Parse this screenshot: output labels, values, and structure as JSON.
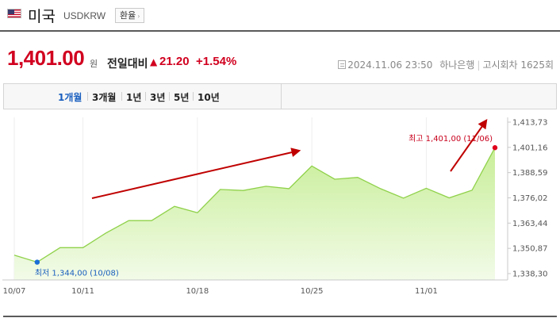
{
  "header": {
    "flag": "us-flag-icon",
    "country": "미국",
    "code": "USDKRW",
    "exchange_button": "환율",
    "exchange_arrow": "›"
  },
  "quote": {
    "price": "1,401.00",
    "unit": "원",
    "compare_label": "전일대비",
    "change_icon": "▲",
    "change": "21.20",
    "change_pct": "+1.54%"
  },
  "meta": {
    "datetime": "2024.11.06 23:50",
    "bank": "하나은행",
    "round": "고시회차 1625회"
  },
  "tabs": [
    {
      "label": "1개월",
      "active": true
    },
    {
      "label": "3개월",
      "active": false
    },
    {
      "label": "1년",
      "active": false
    },
    {
      "label": "3년",
      "active": false
    },
    {
      "label": "5년",
      "active": false
    },
    {
      "label": "10년",
      "active": false
    }
  ],
  "colors": {
    "red": "#d1001f",
    "blue": "#1a5fbf",
    "line": "#8fd14a",
    "fill": "#d9f3b8",
    "arrow": "#c00000"
  },
  "chart_data": {
    "type": "area",
    "x": [
      "10/07",
      "10/08",
      "10/10",
      "10/11",
      "10/14",
      "10/15",
      "10/16",
      "10/17",
      "10/18",
      "10/21",
      "10/22",
      "10/23",
      "10/24",
      "10/25",
      "10/28",
      "10/29",
      "10/30",
      "10/31",
      "11/01",
      "11/04",
      "11/05",
      "11/06"
    ],
    "values": [
      1347.5,
      1344.0,
      1351.2,
      1351.2,
      1358.5,
      1364.7,
      1364.7,
      1371.8,
      1368.6,
      1380.2,
      1379.7,
      1381.8,
      1380.6,
      1391.9,
      1385.3,
      1386.2,
      1380.6,
      1375.9,
      1380.8,
      1376.0,
      1379.8,
      1401.0
    ],
    "x_ticks": [
      "10/07",
      "10/11",
      "10/18",
      "10/25",
      "11/01"
    ],
    "y_ticks": [
      "1,413,73",
      "1,401,16",
      "1,388,59",
      "1,376,02",
      "1,363,44",
      "1,350,87",
      "1,338,30"
    ],
    "y_tick_values": [
      1413.73,
      1401.16,
      1388.59,
      1376.02,
      1363.44,
      1350.87,
      1338.3
    ],
    "ylim": [
      1338.3,
      1413.73
    ],
    "high_label": "최고 1,401,00 (11/06)",
    "low_label": "최저 1,344,00 (10/08)",
    "grid": "vertical",
    "legend": "none"
  }
}
